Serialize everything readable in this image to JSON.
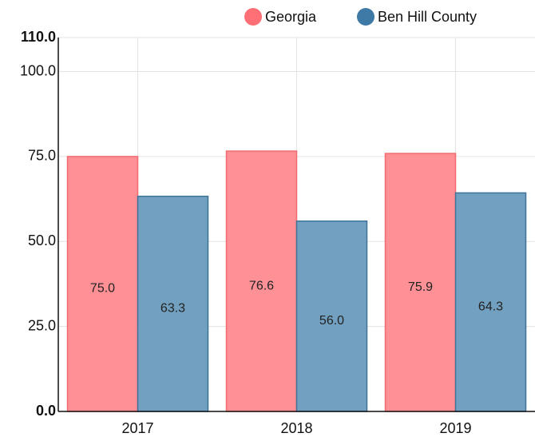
{
  "chart_data": {
    "type": "bar",
    "categories": [
      "2017",
      "2018",
      "2019"
    ],
    "series": [
      {
        "name": "Georgia",
        "color": "#ff8a8f",
        "values": [
          75.0,
          76.6,
          75.9
        ],
        "value_labels": [
          "75.0",
          "76.6",
          "75.9"
        ]
      },
      {
        "name": "Ben Hill County",
        "color": "#6a9bbd",
        "values": [
          63.3,
          56.0,
          64.3
        ],
        "value_labels": [
          "63.3",
          "56.0",
          "64.3"
        ]
      }
    ],
    "ylim": [
      0,
      110
    ],
    "yticks": [
      {
        "value": 0,
        "label": "0.0"
      },
      {
        "value": 25,
        "label": "25.0"
      },
      {
        "value": 50,
        "label": "50.0"
      },
      {
        "value": 75,
        "label": "75.0"
      },
      {
        "value": 100,
        "label": "100.0"
      },
      {
        "value": 110,
        "label": "110.0"
      }
    ],
    "grid": true
  }
}
